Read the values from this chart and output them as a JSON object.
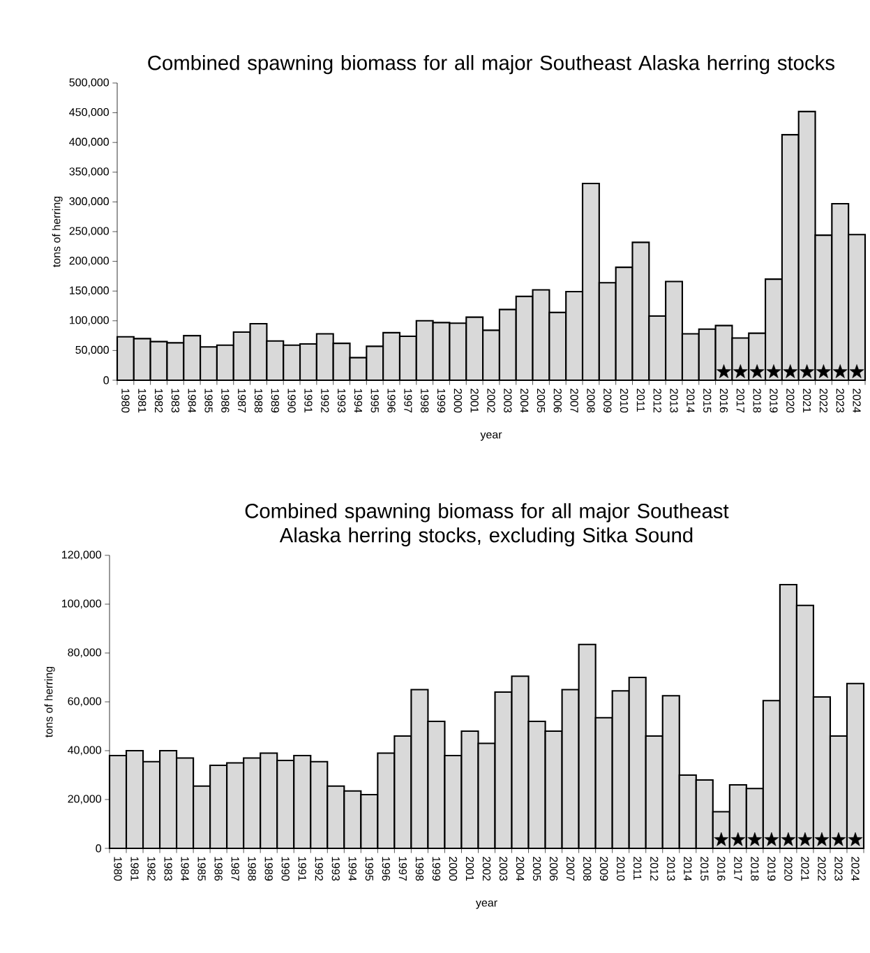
{
  "chart_data": [
    {
      "type": "bar",
      "title": "Combined spawning biomass for all major Southeast Alaska herring stocks",
      "xlabel": "year",
      "ylabel": "tons of herring",
      "categories": [
        "1980",
        "1981",
        "1982",
        "1983",
        "1984",
        "1985",
        "1986",
        "1987",
        "1988",
        "1989",
        "1990",
        "1991",
        "1992",
        "1993",
        "1994",
        "1995",
        "1996",
        "1997",
        "1998",
        "1999",
        "2000",
        "2001",
        "2002",
        "2003",
        "2004",
        "2005",
        "2006",
        "2007",
        "2008",
        "2009",
        "2010",
        "2011",
        "2012",
        "2013",
        "2014",
        "2015",
        "2016",
        "2017",
        "2018",
        "2019",
        "2020",
        "2021",
        "2022",
        "2023",
        "2024"
      ],
      "series": [
        {
          "type": "bar",
          "color": "#d9d9d9",
          "values": [
            73000,
            70000,
            65000,
            63000,
            75000,
            56000,
            59000,
            81000,
            95000,
            66000,
            59000,
            61000,
            78000,
            62000,
            38000,
            57000,
            80000,
            74000,
            100000,
            97000,
            96000,
            106000,
            84000,
            119000,
            141000,
            152000,
            114000,
            149000,
            331000,
            164000,
            190000,
            232000,
            108000,
            166000,
            78000,
            86000,
            92000,
            71000,
            79000,
            170000,
            413000,
            452000,
            244000,
            297000,
            245000
          ]
        },
        {
          "type": "scatter",
          "marker": "star",
          "color": "#000000",
          "values": [
            null,
            null,
            null,
            null,
            null,
            null,
            null,
            null,
            null,
            null,
            null,
            null,
            null,
            null,
            null,
            null,
            null,
            null,
            null,
            null,
            null,
            null,
            null,
            null,
            null,
            null,
            null,
            null,
            null,
            null,
            null,
            null,
            null,
            null,
            null,
            null,
            14000,
            14000,
            14000,
            14000,
            14000,
            14000,
            14000,
            14000,
            14000
          ]
        }
      ],
      "ylim": [
        0,
        500000
      ],
      "yticks": [
        {
          "value": 0,
          "label": "0"
        },
        {
          "value": 50000,
          "label": "50,000"
        },
        {
          "value": 100000,
          "label": "100,000"
        },
        {
          "value": 150000,
          "label": "150,000"
        },
        {
          "value": 200000,
          "label": "200,000"
        },
        {
          "value": 250000,
          "label": "250,000"
        },
        {
          "value": 300000,
          "label": "300,000"
        },
        {
          "value": 350000,
          "label": "350,000"
        },
        {
          "value": 400000,
          "label": "400,000"
        },
        {
          "value": 450000,
          "label": "450,000"
        },
        {
          "value": 500000,
          "label": "500,000"
        }
      ]
    },
    {
      "type": "bar",
      "title": "Combined spawning biomass for all major Southeast Alaska herring stocks, excluding Sitka Sound",
      "xlabel": "year",
      "ylabel": "tons of herring",
      "categories": [
        "1980",
        "1981",
        "1982",
        "1983",
        "1984",
        "1985",
        "1986",
        "1987",
        "1988",
        "1989",
        "1990",
        "1991",
        "1992",
        "1993",
        "1994",
        "1995",
        "1996",
        "1997",
        "1998",
        "1999",
        "2000",
        "2001",
        "2002",
        "2003",
        "2004",
        "2005",
        "2006",
        "2007",
        "2008",
        "2009",
        "2010",
        "2011",
        "2012",
        "2013",
        "2014",
        "2015",
        "2016",
        "2017",
        "2018",
        "2019",
        "2020",
        "2021",
        "2022",
        "2023",
        "2024"
      ],
      "series": [
        {
          "type": "bar",
          "color": "#d9d9d9",
          "values": [
            38000,
            40000,
            35500,
            40000,
            37000,
            25500,
            34000,
            35000,
            37000,
            39000,
            36000,
            38000,
            35500,
            25500,
            23500,
            22000,
            39000,
            46000,
            65000,
            52000,
            38000,
            48000,
            43000,
            64000,
            70500,
            52000,
            48000,
            65000,
            83500,
            53500,
            64500,
            70000,
            46000,
            62500,
            30000,
            28000,
            15000,
            26000,
            24500,
            60500,
            108000,
            99500,
            62000,
            46000,
            67500
          ]
        },
        {
          "type": "scatter",
          "marker": "star",
          "color": "#000000",
          "values": [
            null,
            null,
            null,
            null,
            null,
            null,
            null,
            null,
            null,
            null,
            null,
            null,
            null,
            null,
            null,
            null,
            null,
            null,
            null,
            null,
            null,
            null,
            null,
            null,
            null,
            null,
            null,
            null,
            null,
            null,
            null,
            null,
            null,
            null,
            null,
            null,
            3500,
            3500,
            3500,
            3500,
            3500,
            3500,
            3500,
            3500,
            3500
          ]
        }
      ],
      "ylim": [
        0,
        120000
      ],
      "yticks": [
        {
          "value": 0,
          "label": "0"
        },
        {
          "value": 20000,
          "label": "20,000"
        },
        {
          "value": 40000,
          "label": "40,000"
        },
        {
          "value": 60000,
          "label": "60,000"
        },
        {
          "value": 80000,
          "label": "80,000"
        },
        {
          "value": 100000,
          "label": "100,000"
        },
        {
          "value": 120000,
          "label": "120,000"
        }
      ]
    }
  ]
}
